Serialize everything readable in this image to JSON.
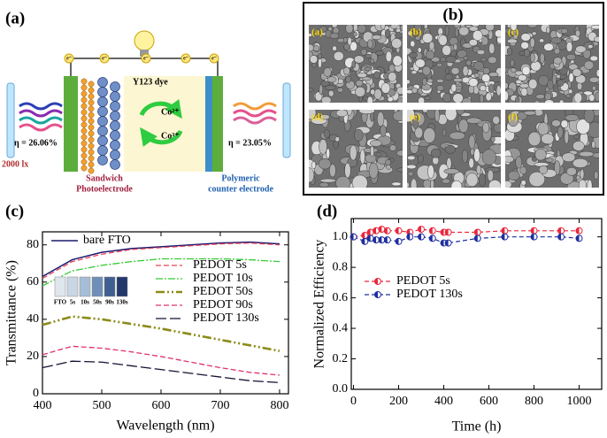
{
  "diagram_a": {
    "label": "(a)",
    "lux": "2000 lx",
    "eta_left": "η = 26.06%",
    "eta_right": "η = 23.05%",
    "dye": "Y123 dye",
    "co_2": "Co²⁺",
    "co_3": "Co³⁺",
    "electrons": [
      "e⁻",
      "e⁻",
      "e⁻",
      "e⁻",
      "e⁻"
    ],
    "photoelectrode": [
      "Sandwich",
      "Photoelectrode"
    ],
    "counter": [
      "Polymeric",
      "counter electrode"
    ]
  },
  "panel_b": {
    "label": "(b)",
    "images": [
      "(a)",
      "(b)",
      "(c)",
      "(d)",
      "(e)",
      "(f)"
    ]
  },
  "chart_data": [
    {
      "type": "line",
      "panel_label": "(c)",
      "xlabel": "Wavelength (nm)",
      "ylabel": "Transmittance (%)",
      "x": [
        400,
        450,
        500,
        550,
        600,
        650,
        700,
        750,
        800
      ],
      "xlim": [
        400,
        815
      ],
      "xticks": [
        400,
        500,
        600,
        700,
        800
      ],
      "ylim": [
        0,
        87
      ],
      "yticks": [
        0,
        20,
        40,
        60,
        80
      ],
      "series": [
        {
          "name": "bare FTO",
          "color": "#1a1a6e",
          "values": [
            63,
            72,
            76,
            78,
            79,
            80,
            81,
            81.5,
            80.5
          ]
        },
        {
          "name": "PEDOT 5s",
          "color": "#e8425a",
          "values": [
            62,
            71,
            75,
            77.5,
            78.5,
            79.5,
            80.5,
            81,
            80
          ]
        },
        {
          "name": "PEDOT 10s",
          "color": "#33cc33",
          "values": [
            58,
            66,
            69,
            71,
            72.5,
            72.5,
            72.5,
            72,
            71
          ]
        },
        {
          "name": "PEDOT 50s",
          "color": "#8b8b1a",
          "values": [
            37,
            41.5,
            40,
            37.5,
            35,
            32,
            29,
            26,
            23
          ]
        },
        {
          "name": "PEDOT 90s",
          "color": "#e0306e",
          "values": [
            21,
            25.5,
            24.5,
            22.5,
            20,
            17,
            14,
            11.5,
            10
          ]
        },
        {
          "name": "PEDOT 130s",
          "color": "#111133",
          "values": [
            14,
            17.5,
            17,
            15,
            13,
            11,
            9,
            7,
            6
          ]
        }
      ],
      "inset_labels": [
        "FTO",
        "5s",
        "10s",
        "50s",
        "90s",
        "130s"
      ]
    },
    {
      "type": "line",
      "panel_label": "(d)",
      "xlabel": "Time (h)",
      "ylabel": "Normalized Efficiency",
      "markers": true,
      "x": [
        0,
        50,
        75,
        100,
        125,
        150,
        200,
        250,
        300,
        350,
        400,
        420,
        550,
        670,
        800,
        920,
        1000
      ],
      "xlim": [
        -10,
        1100
      ],
      "xticks": [
        0,
        200,
        400,
        600,
        800,
        1000
      ],
      "ylim": [
        0,
        1.12
      ],
      "yticks": [
        {
          "value": 0,
          "label": "0.0"
        },
        {
          "value": 0.2,
          "label": "0.2"
        },
        {
          "value": 0.4,
          "label": "0.4"
        },
        {
          "value": 0.6,
          "label": "0.6"
        },
        {
          "value": 0.8,
          "label": "0.8"
        },
        {
          "value": 1,
          "label": "1.0"
        }
      ],
      "series": [
        {
          "name": "PEDOT 5s",
          "color": "#e8283c",
          "values": [
            1.0,
            1.01,
            1.03,
            1.04,
            1.05,
            1.04,
            1.04,
            1.03,
            1.05,
            1.04,
            1.03,
            1.03,
            1.03,
            1.04,
            1.04,
            1.04,
            1.04
          ]
        },
        {
          "name": "PEDOT 130s",
          "color": "#1f2f9f",
          "values": [
            1.0,
            0.97,
            0.99,
            0.98,
            0.98,
            0.98,
            0.97,
            1.0,
            1.0,
            0.99,
            0.96,
            0.96,
            0.99,
            1.0,
            1.0,
            1.0,
            0.99
          ]
        }
      ]
    }
  ]
}
